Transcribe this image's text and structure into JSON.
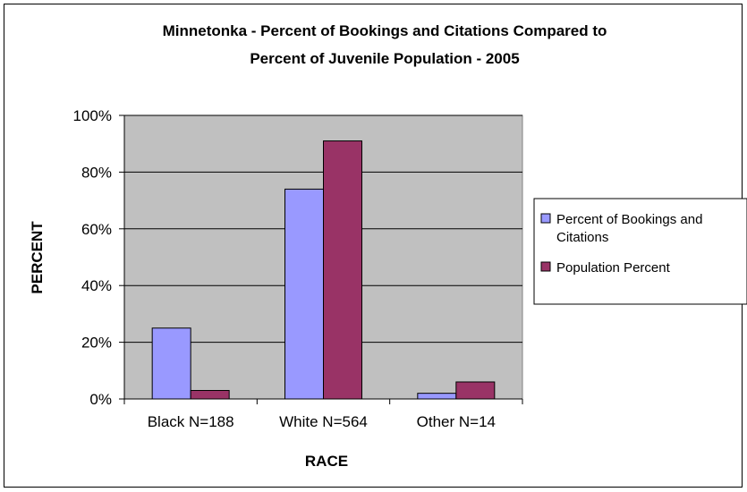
{
  "chart_data": {
    "type": "bar",
    "title_lines": [
      "Minnetonka - Percent of Bookings and Citations Compared to",
      "Percent of Juvenile Population - 2005"
    ],
    "xlabel": "RACE",
    "ylabel": "PERCENT",
    "categories": [
      "Black N=188",
      "White N=564",
      "Other N=14"
    ],
    "ylim": [
      0,
      100
    ],
    "y_ticks": [
      0,
      20,
      40,
      60,
      80,
      100
    ],
    "y_tick_labels": [
      "0%",
      "20%",
      "40%",
      "60%",
      "80%",
      "100%"
    ],
    "grid": true,
    "legend_position": "right",
    "plot_background": "#c0c0c0",
    "series": [
      {
        "name": "Percent of Bookings and Citations",
        "legend_lines": [
          "Percent of Bookings and",
          "Citations"
        ],
        "color": "#9999ff",
        "values": [
          25,
          74,
          2
        ]
      },
      {
        "name": "Population Percent",
        "legend_lines": [
          "Population Percent"
        ],
        "color": "#993366",
        "values": [
          3,
          91,
          6
        ]
      }
    ]
  }
}
